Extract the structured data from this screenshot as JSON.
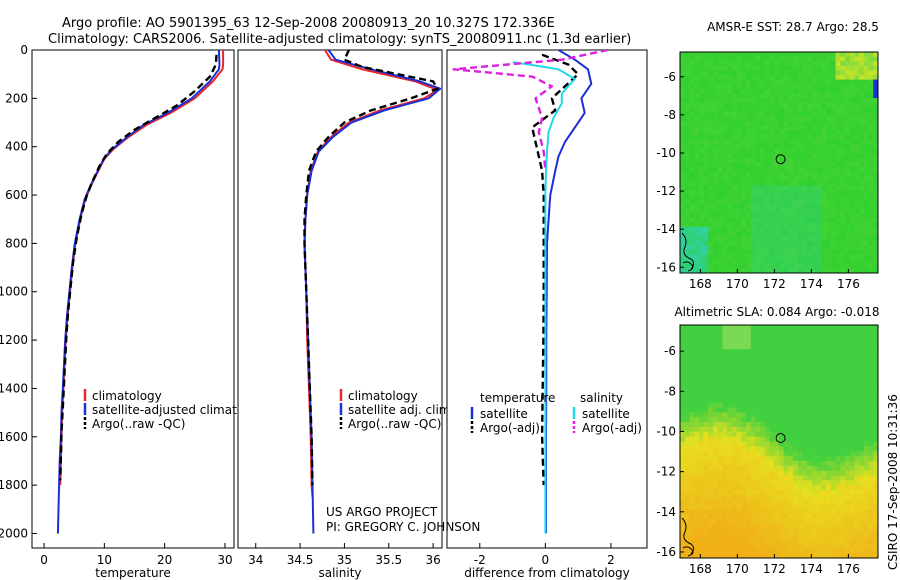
{
  "header": {
    "line1": "Argo profile: AO 5901395_63 12-Sep-2008 20080913_20 10.327S 172.336E",
    "line2": "Climatology: CARS2006. Satellite-adjusted climatology: synTS_20080911.nc (1.3d earlier)"
  },
  "colors": {
    "climatology": "#e8262a",
    "satellite": "#1a2fd6",
    "argo": "#000000",
    "salinity_satellite": "#20d8e8",
    "salinity_argo": "#e020e0"
  },
  "chart_data": [
    {
      "type": "line",
      "id": "temperature",
      "xlabel": "temperature",
      "ylabel": "",
      "xlim": [
        -2,
        31.5
      ],
      "ylim": [
        2060,
        0
      ],
      "xticks": [
        0,
        10,
        20,
        30
      ],
      "yticks": [
        0,
        200,
        400,
        600,
        800,
        1000,
        1200,
        1400,
        1600,
        1800,
        2000
      ],
      "legend": {
        "position": "lower-right",
        "entries": [
          "climatology",
          "satellite-adjusted climatology",
          "Argo(..raw -QC)"
        ]
      },
      "series": [
        {
          "name": "climatology",
          "color": "#e8262a",
          "points": [
            [
              29.7,
              0
            ],
            [
              29.7,
              60
            ],
            [
              29.6,
              80
            ],
            [
              28,
              130
            ],
            [
              25,
              200
            ],
            [
              21,
              260
            ],
            [
              17,
              310
            ],
            [
              14,
              360
            ],
            [
              11.5,
              410
            ],
            [
              10,
              450
            ],
            [
              9,
              500
            ],
            [
              7.8,
              560
            ],
            [
              6.8,
              620
            ],
            [
              6,
              700
            ],
            [
              5.2,
              800
            ],
            [
              4.7,
              900
            ],
            [
              4.3,
              1000
            ],
            [
              3.9,
              1100
            ],
            [
              3.6,
              1200
            ],
            [
              3.4,
              1300
            ],
            [
              3.2,
              1400
            ],
            [
              3,
              1500
            ],
            [
              2.9,
              1600
            ],
            [
              2.8,
              1700
            ],
            [
              2.7,
              1800
            ]
          ]
        },
        {
          "name": "satellite-adjusted climatology",
          "color": "#1a2fd6",
          "points": [
            [
              29,
              0
            ],
            [
              29.1,
              60
            ],
            [
              29,
              80
            ],
            [
              27.5,
              130
            ],
            [
              24.5,
              200
            ],
            [
              20.5,
              260
            ],
            [
              16.5,
              310
            ],
            [
              13.8,
              360
            ],
            [
              11.3,
              410
            ],
            [
              9.9,
              450
            ],
            [
              8.9,
              500
            ],
            [
              7.7,
              560
            ],
            [
              6.7,
              620
            ],
            [
              5.9,
              700
            ],
            [
              5.1,
              800
            ],
            [
              4.6,
              900
            ],
            [
              4.2,
              1000
            ],
            [
              3.8,
              1100
            ],
            [
              3.5,
              1200
            ],
            [
              3.3,
              1300
            ],
            [
              3.1,
              1400
            ],
            [
              2.9,
              1500
            ],
            [
              2.8,
              1600
            ],
            [
              2.6,
              1700
            ],
            [
              2.5,
              1800
            ],
            [
              2.4,
              1900
            ],
            [
              2.3,
              2000
            ]
          ]
        },
        {
          "name": "Argo(..raw -QC)",
          "color": "#000000",
          "dashed": true,
          "points": [
            [
              28.6,
              20
            ],
            [
              28.5,
              60
            ],
            [
              27.5,
              110
            ],
            [
              25,
              170
            ],
            [
              22,
              230
            ],
            [
              18.5,
              280
            ],
            [
              15,
              330
            ],
            [
              12.3,
              380
            ],
            [
              10.4,
              430
            ],
            [
              9.2,
              480
            ],
            [
              8.1,
              540
            ],
            [
              7.1,
              600
            ],
            [
              6.2,
              680
            ],
            [
              5.4,
              780
            ],
            [
              4.8,
              880
            ],
            [
              4.4,
              980
            ],
            [
              4,
              1080
            ],
            [
              3.7,
              1180
            ],
            [
              3.5,
              1280
            ],
            [
              3.3,
              1380
            ],
            [
              3.1,
              1480
            ],
            [
              2.9,
              1580
            ],
            [
              2.8,
              1680
            ],
            [
              2.7,
              1780
            ]
          ]
        }
      ]
    },
    {
      "type": "line",
      "id": "salinity",
      "xlabel": "salinity",
      "ylabel": "",
      "xlim": [
        33.8,
        36.1
      ],
      "ylim": [
        2060,
        0
      ],
      "xticks": [
        34,
        34.5,
        35,
        35.5,
        36
      ],
      "legend": {
        "position": "lower-right",
        "entries": [
          "climatology",
          "satellite adj. clim.",
          "Argo(..raw -QC)"
        ]
      },
      "series": [
        {
          "name": "climatology",
          "color": "#e8262a",
          "points": [
            [
              34.78,
              0
            ],
            [
              34.85,
              40
            ],
            [
              35.2,
              80
            ],
            [
              35.8,
              130
            ],
            [
              36.05,
              165
            ],
            [
              35.9,
              200
            ],
            [
              35.4,
              250
            ],
            [
              35.05,
              300
            ],
            [
              34.85,
              360
            ],
            [
              34.7,
              420
            ],
            [
              34.62,
              500
            ],
            [
              34.58,
              600
            ],
            [
              34.56,
              700
            ],
            [
              34.55,
              800
            ],
            [
              34.56,
              900
            ],
            [
              34.57,
              1000
            ],
            [
              34.58,
              1200
            ],
            [
              34.6,
              1400
            ],
            [
              34.62,
              1600
            ],
            [
              34.63,
              1800
            ],
            [
              34.64,
              1850
            ]
          ]
        },
        {
          "name": "satellite adj. clim.",
          "color": "#1a2fd6",
          "points": [
            [
              34.82,
              0
            ],
            [
              34.9,
              40
            ],
            [
              35.3,
              80
            ],
            [
              35.85,
              130
            ],
            [
              36.08,
              160
            ],
            [
              35.95,
              200
            ],
            [
              35.45,
              250
            ],
            [
              35.08,
              300
            ],
            [
              34.87,
              360
            ],
            [
              34.71,
              420
            ],
            [
              34.63,
              500
            ],
            [
              34.58,
              600
            ],
            [
              34.56,
              700
            ],
            [
              34.55,
              800
            ],
            [
              34.56,
              900
            ],
            [
              34.57,
              1000
            ],
            [
              34.59,
              1200
            ],
            [
              34.61,
              1400
            ],
            [
              34.63,
              1600
            ],
            [
              34.64,
              1800
            ],
            [
              34.65,
              2000
            ]
          ]
        },
        {
          "name": "Argo(..raw -QC)",
          "color": "#000000",
          "dashed": true,
          "points": [
            [
              35.05,
              0
            ],
            [
              35,
              40
            ],
            [
              35.2,
              70
            ],
            [
              35.6,
              100
            ],
            [
              36.0,
              130
            ],
            [
              36.05,
              160
            ],
            [
              35.75,
              200
            ],
            [
              35.3,
              250
            ],
            [
              35.0,
              300
            ],
            [
              34.82,
              360
            ],
            [
              34.68,
              420
            ],
            [
              34.6,
              500
            ],
            [
              34.57,
              600
            ],
            [
              34.55,
              700
            ],
            [
              34.55,
              800
            ],
            [
              34.56,
              900
            ],
            [
              34.57,
              1000
            ],
            [
              34.59,
              1200
            ],
            [
              34.61,
              1400
            ],
            [
              34.63,
              1600
            ],
            [
              34.64,
              1800
            ]
          ]
        }
      ]
    },
    {
      "type": "line",
      "id": "difference",
      "xlabel": "difference from climatology",
      "ylabel": "",
      "xlim": [
        -3,
        3.1
      ],
      "ylim": [
        2060,
        0
      ],
      "xticks": [
        -2,
        0,
        2
      ],
      "legend": {
        "position": "lower-center",
        "groups": [
          {
            "title": "temperature",
            "entries": [
              "satellite",
              "Argo(-adj)"
            ]
          },
          {
            "title": "salinity",
            "entries": [
              "satellite",
              "Argo(-adj)"
            ]
          }
        ]
      },
      "series": [
        {
          "name": "temperature satellite",
          "color": "#1a2fd6",
          "points": [
            [
              0.4,
              0
            ],
            [
              0.9,
              40
            ],
            [
              1.3,
              80
            ],
            [
              1.4,
              140
            ],
            [
              1.1,
              200
            ],
            [
              1.2,
              260
            ],
            [
              0.9,
              320
            ],
            [
              0.6,
              380
            ],
            [
              0.4,
              440
            ],
            [
              0.3,
              500
            ],
            [
              0.15,
              600
            ],
            [
              0.1,
              700
            ],
            [
              0.05,
              800
            ],
            [
              0.04,
              1000
            ],
            [
              0.03,
              1200
            ],
            [
              0.03,
              1400
            ],
            [
              0.02,
              1600
            ],
            [
              0.02,
              1800
            ],
            [
              0.02,
              2000
            ]
          ]
        },
        {
          "name": "temperature Argo(-adj)",
          "color": "#000000",
          "dashed": true,
          "points": [
            [
              -0.1,
              20
            ],
            [
              0.7,
              60
            ],
            [
              1.0,
              100
            ],
            [
              0.6,
              150
            ],
            [
              0.2,
              200
            ],
            [
              0.3,
              250
            ],
            [
              -0.4,
              320
            ],
            [
              -0.3,
              380
            ],
            [
              -0.2,
              440
            ],
            [
              -0.1,
              500
            ],
            [
              -0.05,
              600
            ],
            [
              -0.05,
              800
            ],
            [
              -0.05,
              1000
            ],
            [
              -0.06,
              1200
            ],
            [
              -0.08,
              1400
            ],
            [
              -0.1,
              1600
            ],
            [
              -0.05,
              1800
            ]
          ]
        },
        {
          "name": "salinity satellite",
          "color": "#20d8e8",
          "points": [
            [
              -1.0,
              50
            ],
            [
              -0.5,
              60
            ],
            [
              0.4,
              80
            ],
            [
              0.9,
              120
            ],
            [
              0.5,
              180
            ],
            [
              0.5,
              220
            ],
            [
              0.25,
              280
            ],
            [
              0.1,
              340
            ],
            [
              0.05,
              420
            ],
            [
              0.02,
              500
            ],
            [
              0.0,
              600
            ],
            [
              0.0,
              800
            ],
            [
              0.0,
              1000
            ],
            [
              0.0,
              1200
            ],
            [
              0.0,
              1400
            ],
            [
              0.0,
              1600
            ],
            [
              0.0,
              1800
            ],
            [
              0.0,
              2000
            ]
          ]
        },
        {
          "name": "salinity Argo(-adj)",
          "color": "#e020e0",
          "dashed": true,
          "points": [
            [
              1.9,
              0
            ],
            [
              0.5,
              40
            ],
            [
              -2.8,
              80
            ],
            [
              -0.4,
              110
            ],
            [
              0.2,
              150
            ],
            [
              -0.3,
              200
            ],
            [
              -0.1,
              280
            ],
            [
              -0.2,
              340
            ],
            [
              -0.05,
              420
            ],
            [
              0.0,
              500
            ]
          ]
        }
      ]
    },
    {
      "type": "heatmap",
      "id": "amsre-sst",
      "title": "AMSR-E SST: 28.7 Argo: 28.5",
      "xlim": [
        166.9,
        177.6
      ],
      "ylim": [
        -16.3,
        -4.7
      ],
      "xticks": [
        168,
        170,
        172,
        174,
        176
      ],
      "yticks": [
        -6,
        -8,
        -10,
        -12,
        -14,
        -16
      ],
      "marker": {
        "lon": 172.336,
        "lat": -10.327
      },
      "colors": {
        "main": "#30d030",
        "light": "#7ad840",
        "yellow": "#d8e820",
        "cyan": "#30d0a8"
      }
    },
    {
      "type": "heatmap",
      "id": "altimetric-sla",
      "title": "Altimetric SLA: 0.084 Argo: -0.018",
      "xlim": [
        166.9,
        177.6
      ],
      "ylim": [
        -16.3,
        -4.7
      ],
      "xticks": [
        168,
        170,
        172,
        174,
        176
      ],
      "yticks": [
        -6,
        -8,
        -10,
        -12,
        -14,
        -16
      ],
      "marker": {
        "lon": 172.336,
        "lat": -10.327
      },
      "colors": {
        "green": "#40d040",
        "yellow": "#e8e020",
        "orange": "#f0b018"
      }
    }
  ],
  "annotations": {
    "project_line1": "US ARGO PROJECT",
    "project_line2": "PI: GREGORY C. JOHNSON",
    "footer": "CSIRO 17-Sep-2008 10:31:36"
  }
}
